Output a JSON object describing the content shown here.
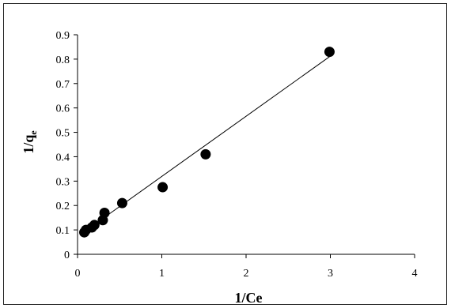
{
  "chart_data": {
    "type": "scatter",
    "title": "",
    "xlabel": "1/Ce",
    "ylabel_main": "1/q",
    "ylabel_sub": "e",
    "xlim": [
      0,
      4
    ],
    "ylim": [
      0,
      0.9
    ],
    "x_ticks": [
      "0",
      "1",
      "2",
      "3",
      "4"
    ],
    "y_ticks": [
      "0",
      "0.1",
      "0.2",
      "0.3",
      "0.4",
      "0.5",
      "0.6",
      "0.7",
      "0.8",
      "0.9"
    ],
    "grid": false,
    "legend": "none",
    "series": [
      {
        "points": [
          {
            "x": 0.08,
            "y": 0.09
          },
          {
            "x": 0.1,
            "y": 0.1
          },
          {
            "x": 0.17,
            "y": 0.11
          },
          {
            "x": 0.2,
            "y": 0.12
          },
          {
            "x": 0.3,
            "y": 0.14
          },
          {
            "x": 0.32,
            "y": 0.17
          },
          {
            "x": 0.53,
            "y": 0.21
          },
          {
            "x": 1.01,
            "y": 0.275
          },
          {
            "x": 1.52,
            "y": 0.41
          },
          {
            "x": 2.99,
            "y": 0.83
          }
        ],
        "color": "#000000"
      }
    ],
    "trendline": {
      "x": [
        0.05,
        2.99
      ],
      "y": [
        0.085,
        0.81
      ],
      "color": "#000000"
    }
  }
}
